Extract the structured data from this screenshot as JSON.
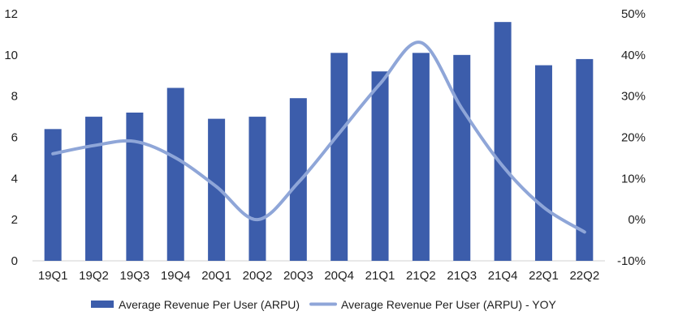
{
  "chart_data": {
    "type": "bar",
    "title": "",
    "xlabel": "",
    "ylabel": "",
    "categories": [
      "19Q1",
      "19Q2",
      "19Q3",
      "19Q4",
      "20Q1",
      "20Q2",
      "20Q3",
      "20Q4",
      "21Q1",
      "21Q2",
      "21Q3",
      "21Q4",
      "22Q1",
      "22Q2"
    ],
    "series": [
      {
        "name": "Average Revenue Per User (ARPU)",
        "kind": "bar",
        "axis": "left",
        "values": [
          6.4,
          7.0,
          7.2,
          8.4,
          6.9,
          7.0,
          7.9,
          10.1,
          9.2,
          10.1,
          10.0,
          11.6,
          9.5,
          9.8
        ]
      },
      {
        "name": "Average Revenue Per User (ARPU) - YOY",
        "kind": "line",
        "axis": "right",
        "values": [
          16,
          18,
          19,
          15,
          8,
          0,
          9,
          21,
          33,
          43,
          27,
          13,
          3,
          -3
        ]
      }
    ],
    "y_left": {
      "min": 0,
      "max": 12,
      "ticks": [
        "0",
        "2",
        "4",
        "6",
        "8",
        "10",
        "12"
      ]
    },
    "y_right": {
      "min": -10,
      "max": 50,
      "ticks": [
        "-10%",
        "0%",
        "10%",
        "20%",
        "30%",
        "40%",
        "50%"
      ]
    },
    "grid": false,
    "legend_position": "bottom",
    "colors": {
      "bar": "#3c5dab",
      "line": "#8fa6d8",
      "axis": "#d0d0d0"
    }
  }
}
